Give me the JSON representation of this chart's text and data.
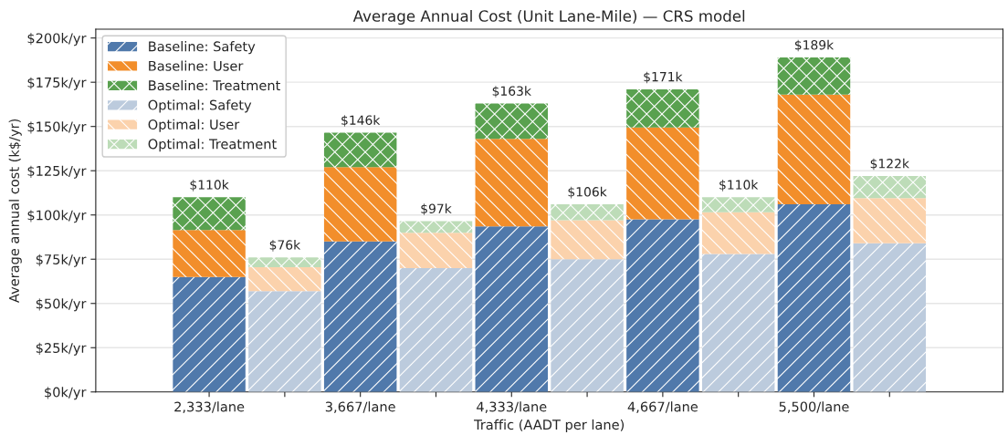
{
  "chart_data": {
    "type": "bar",
    "title": "Average Annual Cost (Unit Lane-Mile) — CRS model",
    "xlabel": "Traffic (AADT per lane)",
    "ylabel": "Average annual cost (k$/yr)",
    "categories": [
      "2,333/lane",
      null,
      "3,667/lane",
      null,
      "4,333/lane",
      null,
      "4,667/lane",
      null,
      "5,500/lane",
      null
    ],
    "stacked": true,
    "series": [
      {
        "name": "Baseline: Safety",
        "color": "#5079ab",
        "values": [
          65,
          null,
          85,
          null,
          93.5,
          null,
          97.5,
          null,
          106,
          null
        ]
      },
      {
        "name": "Baseline: User",
        "color": "#f28e2b",
        "values": [
          26.5,
          null,
          42,
          null,
          49.5,
          null,
          52,
          null,
          62,
          null
        ]
      },
      {
        "name": "Baseline: Treatment",
        "color": "#59a14f",
        "values": [
          18.5,
          null,
          19.5,
          null,
          20,
          null,
          21.5,
          null,
          21,
          null
        ]
      },
      {
        "name": "Optimal: Safety",
        "color": "#bccbdd",
        "values": [
          null,
          57,
          null,
          70,
          null,
          75,
          null,
          78,
          null,
          84
        ]
      },
      {
        "name": "Optimal: User",
        "color": "#fbd2ac",
        "values": [
          null,
          13.5,
          null,
          20,
          null,
          22,
          null,
          23.5,
          null,
          25.5
        ]
      },
      {
        "name": "Optimal: Treatment",
        "color": "#bddcb8",
        "values": [
          null,
          5.5,
          null,
          6.5,
          null,
          9,
          null,
          8.5,
          null,
          12.5
        ]
      }
    ],
    "totals": [
      "$110k",
      "$76k",
      "$146k",
      "$97k",
      "$163k",
      "$106k",
      "$171k",
      "$110k",
      "$189k",
      "$122k"
    ],
    "ylim": [
      0,
      205
    ],
    "yticks": [
      {
        "value": 0,
        "label": "$0k/yr"
      },
      {
        "value": 25,
        "label": "$25k/yr"
      },
      {
        "value": 50,
        "label": "$50k/yr"
      },
      {
        "value": 75,
        "label": "$75k/yr"
      },
      {
        "value": 100,
        "label": "$100k/yr"
      },
      {
        "value": 125,
        "label": "$125k/yr"
      },
      {
        "value": 150,
        "label": "$150k/yr"
      },
      {
        "value": 175,
        "label": "$175k/yr"
      },
      {
        "value": 200,
        "label": "$200k/yr"
      }
    ],
    "grid": "y",
    "legend": "top left"
  }
}
